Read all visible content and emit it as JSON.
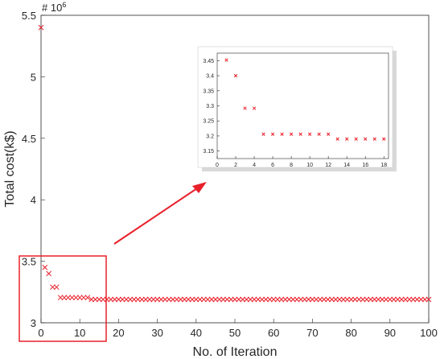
{
  "chart_data": [
    {
      "type": "scatter",
      "panel": "main",
      "xlabel": "No. of Iteration",
      "ylabel": "Total cost(k$)",
      "y_multiplier": "# 10",
      "y_multiplier_exponent": "6",
      "xlim": [
        0,
        100
      ],
      "ylim": [
        3,
        5.5
      ],
      "xticks": [
        "0",
        "10",
        "20",
        "30",
        "40",
        "50",
        "60",
        "70",
        "80",
        "90",
        "100"
      ],
      "yticks": [
        "3",
        "3.5",
        "4",
        "4.5",
        "5",
        "5.5"
      ],
      "marker": "x",
      "marker_color": "#e8202a",
      "x": [
        0,
        1,
        2,
        3,
        4,
        5,
        6,
        7,
        8,
        9,
        10,
        11,
        12,
        13,
        14,
        15,
        16,
        17,
        18,
        19,
        20,
        21,
        22,
        23,
        24,
        25,
        26,
        27,
        28,
        29,
        30,
        31,
        32,
        33,
        34,
        35,
        36,
        37,
        38,
        39,
        40,
        41,
        42,
        43,
        44,
        45,
        46,
        47,
        48,
        49,
        50,
        51,
        52,
        53,
        54,
        55,
        56,
        57,
        58,
        59,
        60,
        61,
        62,
        63,
        64,
        65,
        66,
        67,
        68,
        69,
        70,
        71,
        72,
        73,
        74,
        75,
        76,
        77,
        78,
        79,
        80,
        81,
        82,
        83,
        84,
        85,
        86,
        87,
        88,
        89,
        90,
        91,
        92,
        93,
        94,
        95,
        96,
        97,
        98,
        99,
        100
      ],
      "y": [
        5.4,
        3.45,
        3.4,
        3.29,
        3.29,
        3.205,
        3.205,
        3.205,
        3.205,
        3.205,
        3.205,
        3.205,
        3.205,
        3.19,
        3.19,
        3.19,
        3.19,
        3.19,
        3.19,
        3.19,
        3.19,
        3.19,
        3.19,
        3.19,
        3.19,
        3.19,
        3.19,
        3.19,
        3.19,
        3.19,
        3.19,
        3.19,
        3.19,
        3.19,
        3.19,
        3.19,
        3.19,
        3.19,
        3.19,
        3.19,
        3.19,
        3.19,
        3.19,
        3.19,
        3.19,
        3.19,
        3.19,
        3.19,
        3.19,
        3.19,
        3.19,
        3.19,
        3.19,
        3.19,
        3.19,
        3.19,
        3.19,
        3.19,
        3.19,
        3.19,
        3.19,
        3.19,
        3.19,
        3.19,
        3.19,
        3.19,
        3.19,
        3.19,
        3.19,
        3.19,
        3.19,
        3.19,
        3.19,
        3.19,
        3.19,
        3.19,
        3.19,
        3.19,
        3.19,
        3.19,
        3.19,
        3.19,
        3.19,
        3.19,
        3.19,
        3.19,
        3.19,
        3.19,
        3.19,
        3.19,
        3.19,
        3.19,
        3.19,
        3.19,
        3.19,
        3.19,
        3.19,
        3.19,
        3.19,
        3.19,
        3.19
      ]
    },
    {
      "type": "scatter",
      "panel": "inset",
      "xlim": [
        0,
        18.5
      ],
      "ylim": [
        3.125,
        3.475
      ],
      "xticks": [
        "0",
        "2",
        "4",
        "6",
        "8",
        "10",
        "12",
        "14",
        "16",
        "18"
      ],
      "yticks": [
        "3.15",
        "3.2",
        "3.25",
        "3.3",
        "3.35",
        "3.4",
        "3.45"
      ],
      "marker": "x",
      "marker_color": "#e8202a",
      "x": [
        1,
        2,
        3,
        4,
        5,
        6,
        7,
        8,
        9,
        10,
        11,
        12,
        13,
        14,
        15,
        16,
        17,
        18
      ],
      "y": [
        3.452,
        3.4,
        3.292,
        3.292,
        3.206,
        3.206,
        3.206,
        3.206,
        3.206,
        3.206,
        3.206,
        3.206,
        3.19,
        3.19,
        3.19,
        3.19,
        3.19,
        3.19
      ]
    }
  ],
  "annotations": {
    "zoom_box_color": "#e8202a",
    "arrow_color": "#e8202a"
  }
}
